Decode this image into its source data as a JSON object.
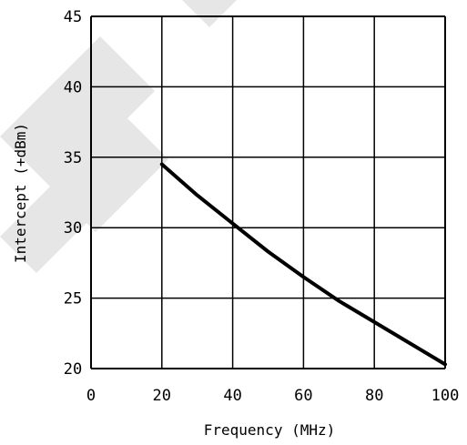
{
  "chart_data": {
    "type": "line",
    "title": "",
    "xlabel": "Frequency (MHz)",
    "ylabel": "Intercept (+dBm)",
    "xlim": [
      0,
      100
    ],
    "ylim": [
      20,
      45
    ],
    "x_ticks": [
      "0",
      "20",
      "40",
      "60",
      "80",
      "100"
    ],
    "y_ticks": [
      "20",
      "25",
      "30",
      "35",
      "40",
      "45"
    ],
    "grid": true,
    "series": [
      {
        "x": [
          20,
          30,
          40,
          50,
          60,
          70,
          80,
          90,
          100
        ],
        "y": [
          34.5,
          32.3,
          30.3,
          28.3,
          26.5,
          24.8,
          23.3,
          21.8,
          20.3
        ]
      }
    ],
    "colors": {
      "line": "#000000",
      "grid": "#000000",
      "watermark": "#e6e6e6"
    }
  }
}
